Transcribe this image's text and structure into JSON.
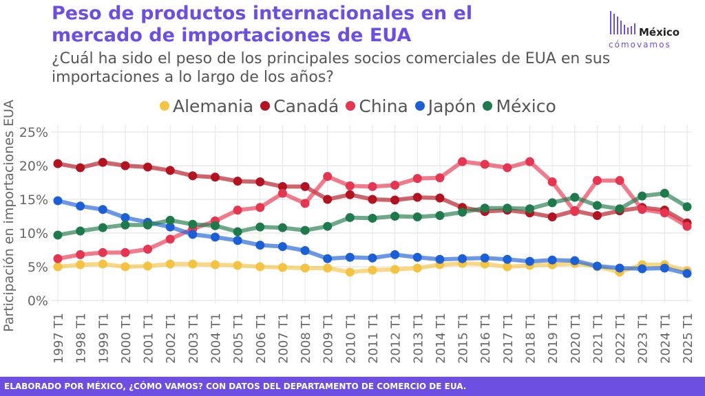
{
  "title": "Peso de productos internacionales en el mercado de importaciones de EUA",
  "subtitle": "¿Cuál ha sido el peso de los principales socios comerciales de EUA en sus importaciones a lo largo de los años?",
  "logo": {
    "word": "México",
    "sub": "cómovamos"
  },
  "footer": "ELABORADO POR MÉXICO, ¿CÓMO VAMOS? CON DATOS DEL DEPARTAMENTO DE COMERCIO DE EUA.",
  "chart_data": {
    "type": "line",
    "title": "",
    "xlabel": "",
    "ylabel": "Participación en importaciones EUA",
    "ylim": [
      0,
      25
    ],
    "y_ticks": [
      "0%",
      "5%",
      "10%",
      "15%",
      "20%",
      "25%"
    ],
    "grid": true,
    "legend_position": "top",
    "categories": [
      "1997 T1",
      "1998 T1",
      "1999 T1",
      "2000 T1",
      "2001 T1",
      "2002 T1",
      "2003 T1",
      "2004 T1",
      "2005 T1",
      "2006 T1",
      "2007 T1",
      "2008 T1",
      "2009 T1",
      "2010 T1",
      "2011 T1",
      "2012 T1",
      "2013 T1",
      "2014 T1",
      "2015 T1",
      "2016 T1",
      "2017 T1",
      "2018 T1",
      "2019 T1",
      "2020 T1",
      "2021 T1",
      "2022 T1",
      "2023 T1",
      "2024 T1",
      "2025 T1"
    ],
    "series": [
      {
        "name": "Alemania",
        "color": "#f5c342",
        "values": [
          5.0,
          5.3,
          5.4,
          5.0,
          5.1,
          5.4,
          5.4,
          5.3,
          5.2,
          5.0,
          4.9,
          4.8,
          4.8,
          4.2,
          4.5,
          4.6,
          4.8,
          5.3,
          5.5,
          5.4,
          5.0,
          5.2,
          5.3,
          5.5,
          5.0,
          4.2,
          5.3,
          5.3,
          4.4
        ]
      },
      {
        "name": "Canadá",
        "color": "#b3121f",
        "values": [
          20.3,
          19.7,
          20.5,
          20.0,
          19.8,
          19.3,
          18.5,
          18.3,
          17.7,
          17.6,
          16.9,
          16.9,
          15.0,
          15.7,
          15.0,
          14.9,
          15.3,
          15.2,
          13.8,
          13.2,
          13.4,
          13.0,
          12.4,
          13.3,
          12.6,
          13.3,
          13.8,
          13.4,
          11.5
        ]
      },
      {
        "name": "China",
        "color": "#e63550",
        "values": [
          6.2,
          6.8,
          7.1,
          7.1,
          7.6,
          9.1,
          10.6,
          11.8,
          13.4,
          13.8,
          15.9,
          14.4,
          18.4,
          17.0,
          16.9,
          17.1,
          18.1,
          18.2,
          20.6,
          20.2,
          19.7,
          20.6,
          17.6,
          13.2,
          17.8,
          17.8,
          13.5,
          13.0,
          11.0
        ]
      },
      {
        "name": "Japón",
        "color": "#1b5fd6",
        "values": [
          14.8,
          14.0,
          13.5,
          12.3,
          11.6,
          10.9,
          9.8,
          9.4,
          8.9,
          8.2,
          8.0,
          7.4,
          6.2,
          6.4,
          6.3,
          6.8,
          6.4,
          6.1,
          6.2,
          6.3,
          6.1,
          5.8,
          6.0,
          5.9,
          5.1,
          4.8,
          4.7,
          4.8,
          4.0
        ]
      },
      {
        "name": "México",
        "color": "#1e7a4a",
        "values": [
          9.7,
          10.3,
          10.8,
          11.2,
          11.2,
          11.9,
          11.3,
          11.1,
          10.2,
          10.9,
          10.8,
          10.4,
          11.0,
          12.3,
          12.2,
          12.5,
          12.4,
          12.6,
          13.1,
          13.7,
          13.7,
          13.6,
          14.5,
          15.3,
          14.1,
          13.6,
          15.5,
          15.9,
          13.9
        ]
      }
    ]
  }
}
